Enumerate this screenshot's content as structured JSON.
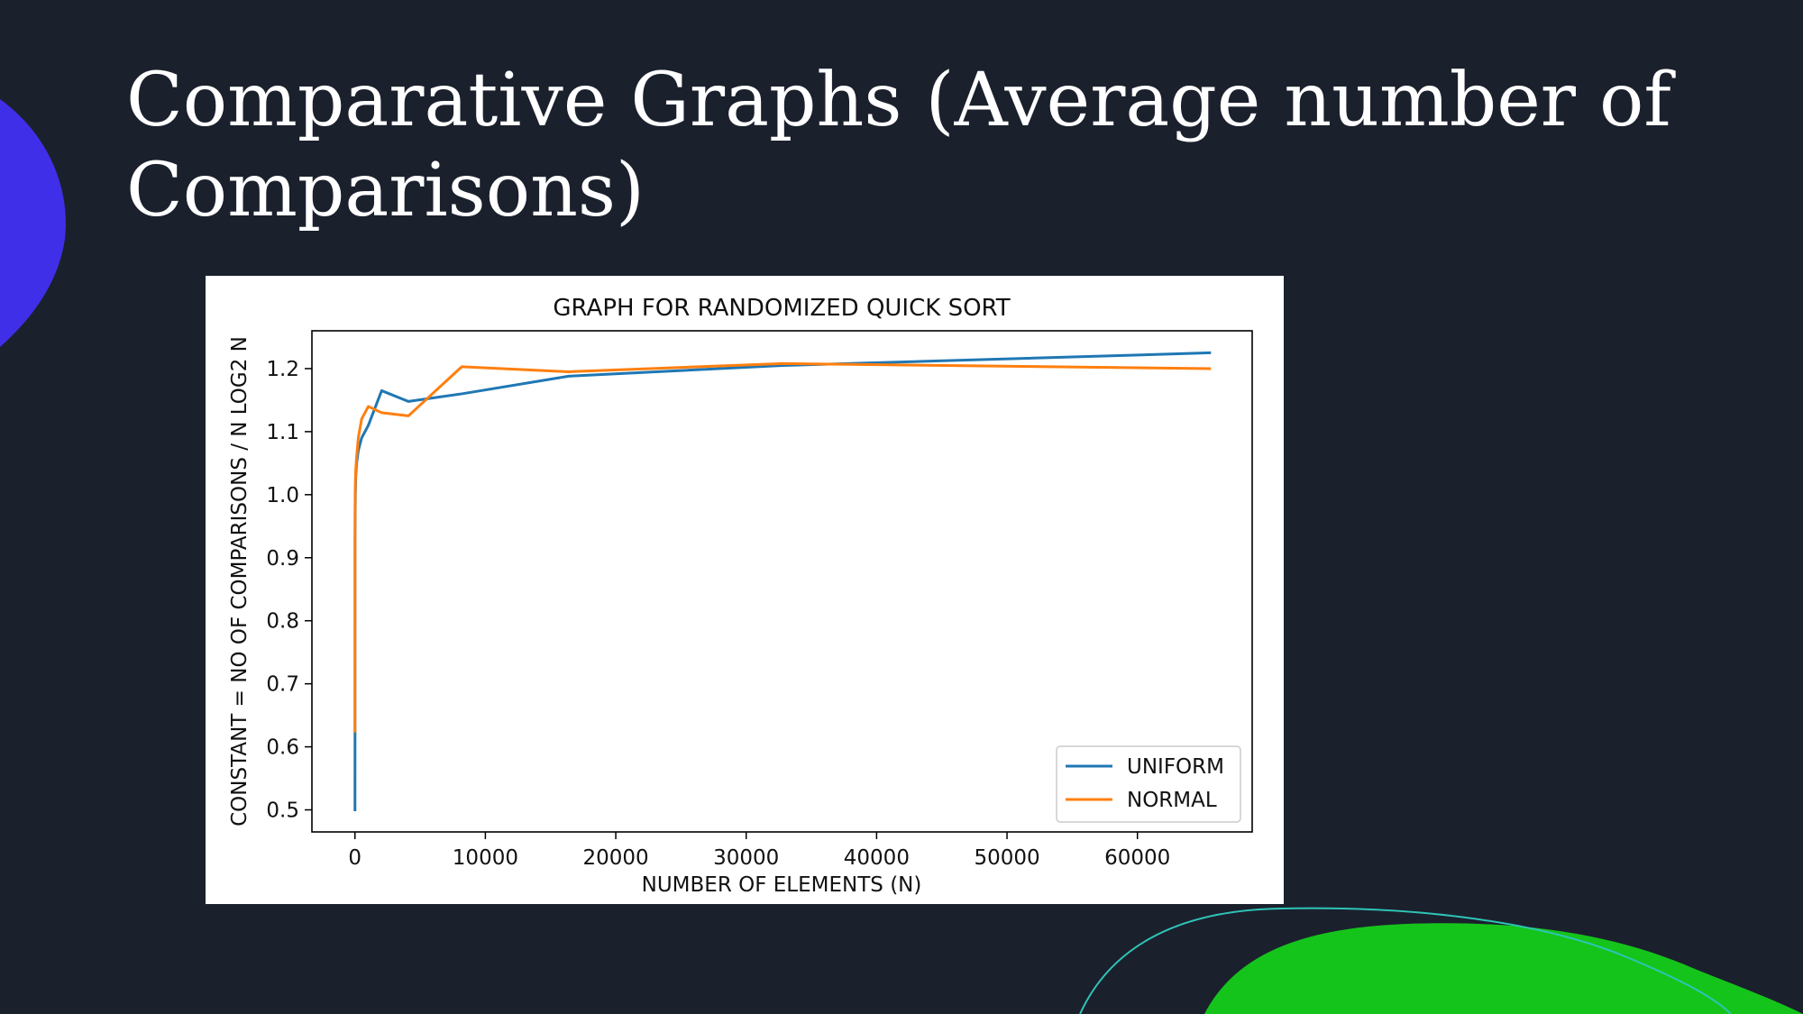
{
  "slide": {
    "title": "Comparative Graphs (Average number of Comparisons)"
  },
  "colors": {
    "background": "#1b202d",
    "blob_blue": "#3f2fe8",
    "blob_green": "#15c41b",
    "accent_line": "#2ec4b6",
    "uniform": "#1f77b4",
    "normal": "#ff7f0e"
  },
  "chart_data": {
    "type": "line",
    "title": "GRAPH FOR RANDOMIZED QUICK SORT",
    "xlabel": "NUMBER OF ELEMENTS (N)",
    "ylabel": "CONSTANT = NO OF COMPARISONS / N LOG2 N",
    "xlim": [
      -3300,
      68800
    ],
    "ylim": [
      0.465,
      1.26
    ],
    "xticks": [
      0,
      10000,
      20000,
      30000,
      40000,
      50000,
      60000
    ],
    "xtick_labels": [
      "0",
      "10000",
      "20000",
      "30000",
      "40000",
      "50000",
      "60000"
    ],
    "yticks": [
      0.5,
      0.6,
      0.7,
      0.8,
      0.9,
      1.0,
      1.1,
      1.2
    ],
    "ytick_labels": [
      "0.5",
      "0.6",
      "0.7",
      "0.8",
      "0.9",
      "1.0",
      "1.1",
      "1.2"
    ],
    "grid": false,
    "legend": "lower-right",
    "series": [
      {
        "name": "UNIFORM",
        "color": "#1f77b4",
        "x": [
          2,
          4,
          8,
          16,
          32,
          64,
          128,
          256,
          512,
          1024,
          2048,
          4096,
          8192,
          16384,
          32768,
          65536
        ],
        "y": [
          0.5,
          0.625,
          0.93,
          0.97,
          1.0,
          1.03,
          1.05,
          1.07,
          1.09,
          1.11,
          1.165,
          1.148,
          1.16,
          1.188,
          1.205,
          1.225
        ]
      },
      {
        "name": "NORMAL",
        "color": "#ff7f0e",
        "x": [
          2,
          4,
          8,
          16,
          32,
          64,
          128,
          256,
          512,
          1024,
          2048,
          4096,
          8192,
          16384,
          32768,
          65536
        ],
        "y": [
          0.625,
          0.9,
          0.96,
          1.0,
          1.02,
          1.04,
          1.06,
          1.09,
          1.12,
          1.14,
          1.13,
          1.125,
          1.203,
          1.195,
          1.208,
          1.2
        ]
      }
    ]
  }
}
